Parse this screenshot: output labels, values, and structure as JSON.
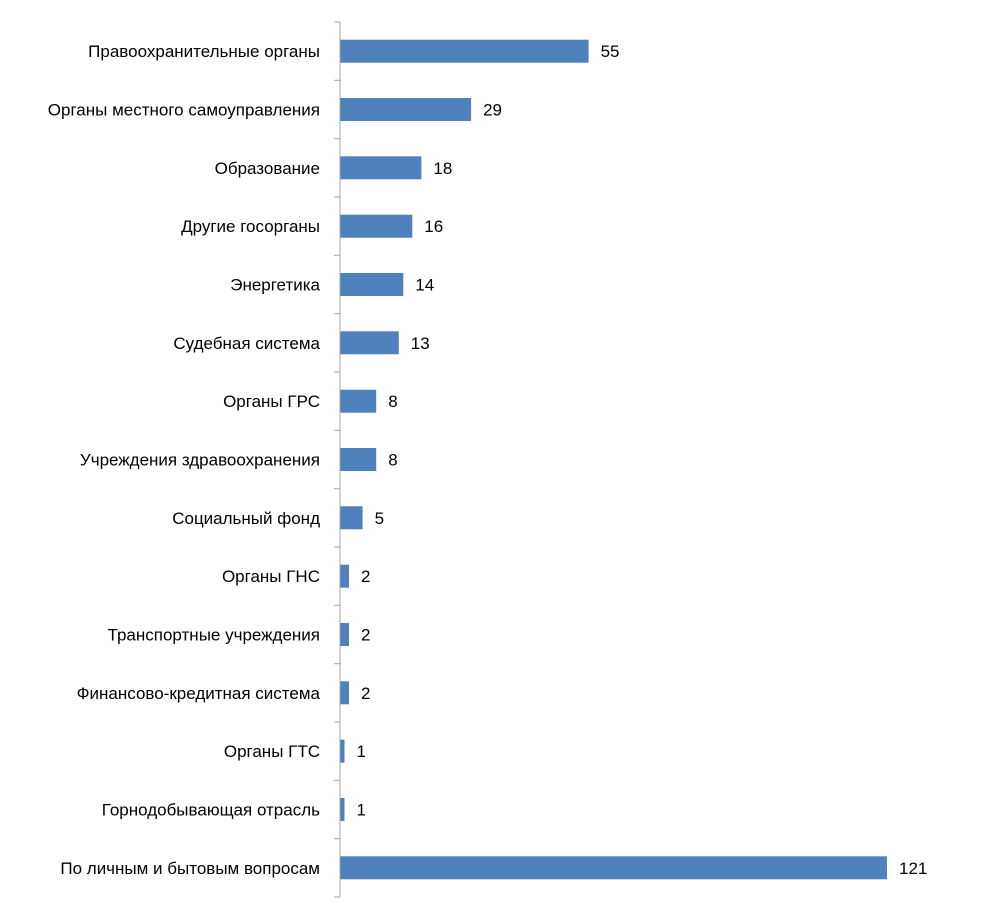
{
  "chart_data": {
    "type": "bar",
    "orientation": "horizontal",
    "categories": [
      "Правоохранительные органы",
      "Органы местного самоуправления",
      "Образование",
      "Другие госорганы",
      "Энергетика",
      "Судебная система",
      "Органы ГРС",
      "Учреждения здравоохранения",
      "Социальный фонд",
      "Органы ГНС",
      "Транспортные учреждения",
      "Финансово-кредитная система",
      "Органы ГТС",
      "Горнодобывающая отрасль",
      "По личным и бытовым вопросам"
    ],
    "values": [
      55,
      29,
      18,
      16,
      14,
      13,
      8,
      8,
      5,
      2,
      2,
      2,
      1,
      1,
      121
    ],
    "title": "",
    "xlabel": "",
    "ylabel": "",
    "xlim": [
      0,
      121
    ],
    "grid": false,
    "legend": "none",
    "data_labels": true,
    "bar_color": "#4F81BD",
    "axis_color": "#A6A6A6"
  }
}
